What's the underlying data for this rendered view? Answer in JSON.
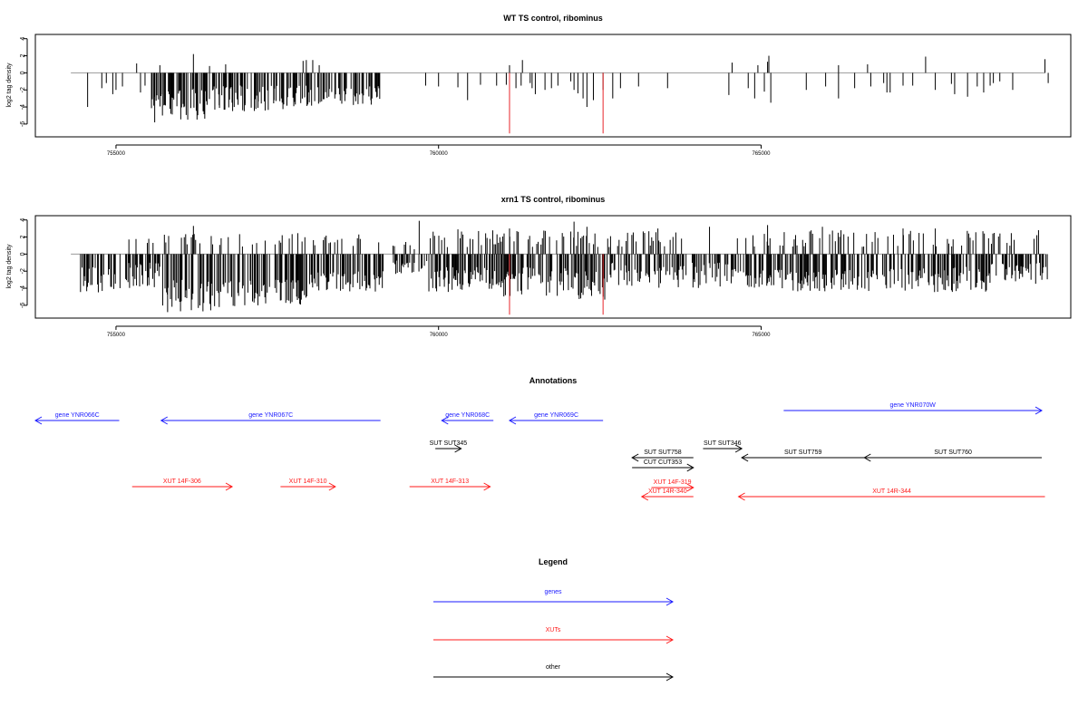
{
  "chart_data": [
    {
      "type": "bar",
      "title": "WT TS control, ribominus",
      "xlabel": "",
      "ylabel": "log2 tag density",
      "xlim": [
        753750,
        769800
      ],
      "ylim": [
        -7.5,
        4.5
      ],
      "yticks": [
        4,
        2,
        0,
        -2,
        -4,
        -6
      ],
      "xticks": [
        755000,
        760000,
        765000
      ],
      "xtick_labels": [
        "755000",
        "760000",
        "765000"
      ],
      "grid": false,
      "baseline": {
        "x": [
          754300,
          769400
        ],
        "y": 0
      },
      "bars": {
        "neg_dense": [
          {
            "x_from": 755550,
            "x_to": 755800,
            "min": -4.5,
            "max": -2.5
          },
          {
            "x_from": 755800,
            "x_to": 756400,
            "min": -5.5,
            "max": -1.5
          },
          {
            "x_from": 756400,
            "x_to": 757600,
            "min": -4.5,
            "max": -1.5
          },
          {
            "x_from": 757600,
            "x_to": 759100,
            "min": -4.0,
            "max": -1.5
          }
        ],
        "points": [
          [
            754560,
            -4.0
          ],
          [
            754780,
            -1.8
          ],
          [
            754850,
            -1.2
          ],
          [
            754950,
            -2.5
          ],
          [
            755000,
            -2.0
          ],
          [
            755100,
            -1.6
          ],
          [
            755320,
            1.1
          ],
          [
            755380,
            -2.3
          ],
          [
            755450,
            -1.5
          ],
          [
            755600,
            -5.8
          ],
          [
            755680,
            0.9
          ],
          [
            755720,
            -5.0
          ],
          [
            755850,
            -4.8
          ],
          [
            756200,
            2.2
          ],
          [
            756350,
            -4.5
          ],
          [
            756450,
            0.8
          ],
          [
            756600,
            -3.8
          ],
          [
            756700,
            1.0
          ],
          [
            756800,
            -3.5
          ],
          [
            757000,
            -3.6
          ],
          [
            757200,
            -4.1
          ],
          [
            757450,
            -3.2
          ],
          [
            757650,
            -3.8
          ],
          [
            757900,
            1.4
          ],
          [
            757950,
            1.5
          ],
          [
            758050,
            1.5
          ],
          [
            758150,
            0.9
          ],
          [
            758300,
            -2.8
          ],
          [
            758500,
            -3.0
          ],
          [
            758700,
            -2.6
          ],
          [
            758950,
            -3.2
          ],
          [
            759050,
            -2.8
          ],
          [
            759800,
            -1.5
          ],
          [
            760000,
            -1.6
          ],
          [
            760300,
            -1.7
          ],
          [
            760450,
            -3.2
          ],
          [
            760650,
            -1.4
          ],
          [
            760900,
            -1.5
          ],
          [
            761050,
            -1.4
          ],
          [
            761100,
            0.9
          ],
          [
            761200,
            -1.8
          ],
          [
            761280,
            -1.5
          ],
          [
            761300,
            1.5
          ],
          [
            761420,
            -1.2
          ],
          [
            761450,
            -1.8
          ],
          [
            761500,
            -2.5
          ],
          [
            761650,
            -2.0
          ],
          [
            761750,
            -1.8
          ],
          [
            761850,
            -1.5
          ],
          [
            762050,
            -1.0
          ],
          [
            762100,
            -2.0
          ],
          [
            762160,
            -2.4
          ],
          [
            762240,
            -3.0
          ],
          [
            762300,
            -4.0
          ],
          [
            762400,
            -3.2
          ],
          [
            762550,
            -2.0
          ],
          [
            762700,
            -3.0
          ],
          [
            762820,
            -1.8
          ],
          [
            763100,
            -1.6
          ],
          [
            763550,
            -1.8
          ],
          [
            764550,
            1.2
          ],
          [
            764500,
            -2.6
          ],
          [
            764800,
            -1.8
          ],
          [
            764900,
            -3.0
          ],
          [
            764950,
            0.9
          ],
          [
            765050,
            -2.2
          ],
          [
            765100,
            1.3
          ],
          [
            765120,
            2.0
          ],
          [
            765150,
            -3.5
          ],
          [
            765700,
            -2.0
          ],
          [
            766000,
            -1.6
          ],
          [
            766200,
            -3.0
          ],
          [
            766200,
            0.9
          ],
          [
            766650,
            1.0
          ],
          [
            766450,
            -1.8
          ],
          [
            766700,
            -1.6
          ],
          [
            766900,
            -1.2
          ],
          [
            766950,
            -2.3
          ],
          [
            767000,
            -2.3
          ],
          [
            767200,
            -1.5
          ],
          [
            767350,
            -1.5
          ],
          [
            767550,
            1.9
          ],
          [
            767700,
            -2.0
          ],
          [
            767950,
            -1.3
          ],
          [
            768000,
            -2.5
          ],
          [
            768200,
            -2.8
          ],
          [
            768350,
            -1.6
          ],
          [
            768450,
            -2.3
          ],
          [
            768550,
            -1.5
          ],
          [
            768600,
            -1.2
          ],
          [
            768700,
            -1.0
          ],
          [
            768900,
            -2.0
          ],
          [
            769400,
            1.6
          ],
          [
            769450,
            -1.2
          ]
        ],
        "highlighted": [
          {
            "x": 761100,
            "value": -7.1,
            "color": "#e8262b"
          },
          {
            "x": 762550,
            "value": -7.1,
            "color": "#e8262b"
          }
        ]
      }
    },
    {
      "type": "bar",
      "title": "xrn1 TS control, ribominus",
      "xlabel": "",
      "ylabel": "log2 tag density",
      "xlim": [
        753750,
        769800
      ],
      "ylim": [
        -7.5,
        4.5
      ],
      "yticks": [
        4,
        2,
        0,
        -2,
        -4,
        -6
      ],
      "xticks": [
        755000,
        760000,
        765000
      ],
      "xtick_labels": [
        "755000",
        "760000",
        "765000"
      ],
      "grid": false,
      "baseline": {
        "x": [
          754300,
          769400
        ],
        "y": 0
      },
      "bars": {
        "neg_dense": [
          {
            "x_from": 754450,
            "x_to": 755100,
            "min": -4.5,
            "max": -1.5
          },
          {
            "x_from": 755150,
            "x_to": 755700,
            "min": -4.0,
            "max": -1.0
          },
          {
            "x_from": 755700,
            "x_to": 756600,
            "min": -6.8,
            "max": -3.0
          },
          {
            "x_from": 756600,
            "x_to": 758000,
            "min": -6.2,
            "max": -3.0
          },
          {
            "x_from": 758000,
            "x_to": 759150,
            "min": -4.5,
            "max": -2.0
          },
          {
            "x_from": 759300,
            "x_to": 759850,
            "min": -2.5,
            "max": -0.5
          },
          {
            "x_from": 759850,
            "x_to": 761000,
            "min": -4.5,
            "max": -1.5
          },
          {
            "x_from": 761000,
            "x_to": 762000,
            "min": -5.0,
            "max": -1.5
          },
          {
            "x_from": 762000,
            "x_to": 762600,
            "min": -6.0,
            "max": -2.0
          },
          {
            "x_from": 762600,
            "x_to": 764500,
            "min": -4.0,
            "max": -1.0
          },
          {
            "x_from": 764500,
            "x_to": 766500,
            "min": -4.5,
            "max": -1.5
          },
          {
            "x_from": 766500,
            "x_to": 768500,
            "min": -4.5,
            "max": -1.5
          },
          {
            "x_from": 768500,
            "x_to": 769450,
            "min": -3.5,
            "max": -1.0
          }
        ],
        "pos_dense": [
          {
            "x_from": 755200,
            "x_to": 759100,
            "min": 0.8,
            "max": 2.5
          },
          {
            "x_from": 759250,
            "x_to": 759700,
            "min": 0.5,
            "max": 1.5
          },
          {
            "x_from": 759850,
            "x_to": 763800,
            "min": 0.8,
            "max": 2.8
          },
          {
            "x_from": 764500,
            "x_to": 769300,
            "min": 0.8,
            "max": 2.8
          },
          {
            "x_from": 769300,
            "x_to": 769430,
            "min": 1.5,
            "max": 2.8
          }
        ],
        "points": [
          [
            755800,
            -6.8
          ],
          [
            756000,
            -6.7
          ],
          [
            756200,
            3.3
          ],
          [
            756600,
            -6.2
          ],
          [
            757200,
            -6.0
          ],
          [
            759700,
            3.9
          ],
          [
            760300,
            2.9
          ],
          [
            761100,
            3.0
          ],
          [
            762100,
            3.8
          ],
          [
            762300,
            3.2
          ],
          [
            763400,
            3.0
          ],
          [
            764200,
            3.2
          ],
          [
            765100,
            3.4
          ],
          [
            765950,
            3.2
          ],
          [
            767200,
            3.0
          ],
          [
            767700,
            3.0
          ],
          [
            769300,
            2.8
          ]
        ],
        "highlighted": [
          {
            "x": 761100,
            "value": -7.1,
            "color": "#e8262b"
          },
          {
            "x": 762550,
            "value": -7.1,
            "color": "#e8262b"
          }
        ]
      }
    }
  ],
  "annotations": {
    "title": "Annotations",
    "xlim": [
      753750,
      769800
    ],
    "features": [
      {
        "label": "gene YNR066C",
        "color": "#1a1aff",
        "start": 755050,
        "end": 753750,
        "row": 1
      },
      {
        "label": "gene YNR067C",
        "color": "#1a1aff",
        "start": 759100,
        "end": 755700,
        "row": 1
      },
      {
        "label": "gene YNR068C",
        "color": "#1a1aff",
        "start": 760850,
        "end": 760050,
        "row": 1
      },
      {
        "label": "gene YNR069C",
        "color": "#1a1aff",
        "start": 762550,
        "end": 761100,
        "row": 1
      },
      {
        "label": "gene YNR070W",
        "color": "#1a1aff",
        "start": 765350,
        "end": 769350,
        "row": 0
      },
      {
        "label": "SUT SUT345",
        "color": "#000000",
        "start": 759950,
        "end": 760350,
        "row": 2
      },
      {
        "label": "SUT SUT758",
        "color": "#000000",
        "start": 763950,
        "end": 763000,
        "row": 3
      },
      {
        "label": "CUT CUT353",
        "color": "#000000",
        "start": 763000,
        "end": 763950,
        "row": 4
      },
      {
        "label": "SUT SUT346",
        "color": "#000000",
        "start": 764100,
        "end": 764700,
        "row": 2
      },
      {
        "label": "SUT SUT759",
        "color": "#000000",
        "start": 766600,
        "end": 764700,
        "row": 3
      },
      {
        "label": "SUT SUT760",
        "color": "#000000",
        "start": 769350,
        "end": 766600,
        "row": 3
      },
      {
        "label": "XUT 14F-306",
        "color": "#ff1a1a",
        "start": 755250,
        "end": 756800,
        "row": 5
      },
      {
        "label": "XUT 14F-310",
        "color": "#ff1a1a",
        "start": 757550,
        "end": 758400,
        "row": 5
      },
      {
        "label": "XUT 14F-313",
        "color": "#ff1a1a",
        "start": 759550,
        "end": 760800,
        "row": 5
      },
      {
        "label": "XUT 14F-319",
        "color": "#ff1a1a",
        "start": 763300,
        "end": 763950,
        "row": 6
      },
      {
        "label": "XUT 14R-340",
        "color": "#ff1a1a",
        "start": 763950,
        "end": 763150,
        "row": 7
      },
      {
        "label": "XUT 14R-344",
        "color": "#ff1a1a",
        "start": 769400,
        "end": 764650,
        "row": 7
      }
    ]
  },
  "legend": {
    "title": "Legend",
    "items": [
      {
        "label": "genes",
        "color": "#1a1aff"
      },
      {
        "label": "XUTs",
        "color": "#ff1a1a"
      },
      {
        "label": "other",
        "color": "#000000"
      }
    ]
  }
}
